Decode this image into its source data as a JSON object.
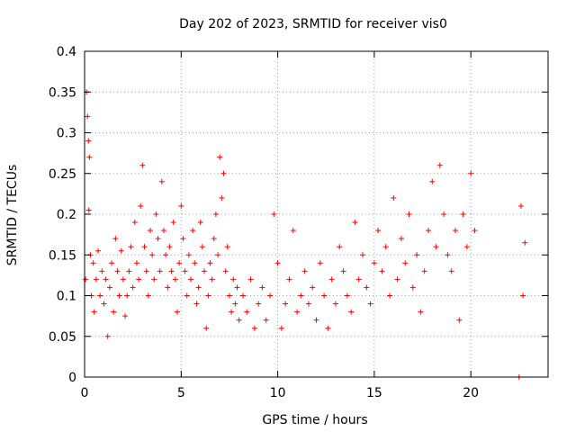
{
  "chart_data": {
    "type": "scatter",
    "title": "Day 202 of 2023, SRMTID for receiver vis0",
    "xlabel": "GPS time / hours",
    "ylabel": "SRMTID / TECUs",
    "xlim": [
      0,
      24
    ],
    "ylim": [
      0,
      0.4
    ],
    "xticks": [
      0,
      5,
      10,
      15,
      20
    ],
    "xtick_labels": [
      "0",
      "5",
      "10",
      "15",
      "20"
    ],
    "yticks": [
      0,
      0.05,
      0.1,
      0.15,
      0.2,
      0.25,
      0.3,
      0.35,
      0.4
    ],
    "ytick_labels": [
      "0",
      "0.05",
      "0.1",
      "0.15",
      "0.2",
      "0.25",
      "0.3",
      "0.35",
      "0.4"
    ],
    "grid": true,
    "legend": "none",
    "marker": "plus",
    "color": "#ff0000",
    "series": [
      {
        "x": [
          0.05,
          0.1,
          0.15,
          0.2,
          0.22,
          0.25,
          0.3,
          0.35,
          0.45,
          0.5,
          0.6,
          0.7,
          0.8,
          0.9,
          1.0,
          1.1,
          1.2,
          1.3,
          1.4,
          1.5,
          1.6,
          1.7,
          1.8,
          1.9,
          2.0,
          2.1,
          2.2,
          2.3,
          2.4,
          2.5,
          2.6,
          2.7,
          2.8,
          2.9,
          3.0,
          3.1,
          3.2,
          3.3,
          3.4,
          3.5,
          3.6,
          3.7,
          3.8,
          3.9,
          4.0,
          4.1,
          4.2,
          4.3,
          4.4,
          4.5,
          4.6,
          4.7,
          4.8,
          4.9,
          5.0,
          5.1,
          5.2,
          5.3,
          5.4,
          5.5,
          5.6,
          5.7,
          5.8,
          5.9,
          6.0,
          6.1,
          6.2,
          6.3,
          6.4,
          6.5,
          6.6,
          6.7,
          6.8,
          6.9,
          7.0,
          7.1,
          7.2,
          7.3,
          7.4,
          7.5,
          7.6,
          7.7,
          7.8,
          7.9,
          8.0,
          8.2,
          8.4,
          8.6,
          8.8,
          9.0,
          9.2,
          9.4,
          9.6,
          9.8,
          10.0,
          10.2,
          10.4,
          10.6,
          10.8,
          11.0,
          11.2,
          11.4,
          11.6,
          11.8,
          12.0,
          12.2,
          12.4,
          12.6,
          12.8,
          13.0,
          13.2,
          13.4,
          13.6,
          13.8,
          14.0,
          14.2,
          14.4,
          14.6,
          14.8,
          15.0,
          15.2,
          15.4,
          15.6,
          15.8,
          16.0,
          16.2,
          16.4,
          16.6,
          16.8,
          17.0,
          17.2,
          17.4,
          17.6,
          17.8,
          18.0,
          18.2,
          18.4,
          18.6,
          18.8,
          19.0,
          19.2,
          19.4,
          19.6,
          19.8,
          20.0,
          20.2,
          22.5,
          22.6,
          22.7,
          22.8
        ],
        "y": [
          0.12,
          0.35,
          0.32,
          0.29,
          0.205,
          0.27,
          0.15,
          0.1,
          0.14,
          0.08,
          0.12,
          0.155,
          0.1,
          0.13,
          0.09,
          0.12,
          0.05,
          0.11,
          0.14,
          0.08,
          0.17,
          0.13,
          0.1,
          0.155,
          0.12,
          0.075,
          0.1,
          0.13,
          0.16,
          0.11,
          0.19,
          0.14,
          0.12,
          0.21,
          0.26,
          0.16,
          0.13,
          0.1,
          0.18,
          0.15,
          0.12,
          0.2,
          0.17,
          0.13,
          0.24,
          0.18,
          0.15,
          0.11,
          0.16,
          0.13,
          0.19,
          0.12,
          0.08,
          0.14,
          0.21,
          0.17,
          0.13,
          0.1,
          0.15,
          0.12,
          0.18,
          0.14,
          0.09,
          0.11,
          0.19,
          0.16,
          0.13,
          0.06,
          0.1,
          0.14,
          0.12,
          0.17,
          0.2,
          0.15,
          0.27,
          0.22,
          0.25,
          0.13,
          0.16,
          0.1,
          0.08,
          0.12,
          0.09,
          0.11,
          0.07,
          0.1,
          0.08,
          0.12,
          0.06,
          0.09,
          0.11,
          0.07,
          0.1,
          0.2,
          0.14,
          0.06,
          0.09,
          0.12,
          0.18,
          0.08,
          0.1,
          0.13,
          0.09,
          0.11,
          0.07,
          0.14,
          0.1,
          0.06,
          0.12,
          0.09,
          0.16,
          0.13,
          0.1,
          0.08,
          0.19,
          0.12,
          0.15,
          0.11,
          0.09,
          0.14,
          0.18,
          0.13,
          0.16,
          0.1,
          0.22,
          0.12,
          0.17,
          0.14,
          0.2,
          0.11,
          0.15,
          0.08,
          0.13,
          0.18,
          0.24,
          0.16,
          0.26,
          0.2,
          0.15,
          0.13,
          0.18,
          0.07,
          0.2,
          0.16,
          0.25,
          0.18,
          0.0,
          0.21,
          0.1,
          0.165
        ]
      }
    ]
  }
}
